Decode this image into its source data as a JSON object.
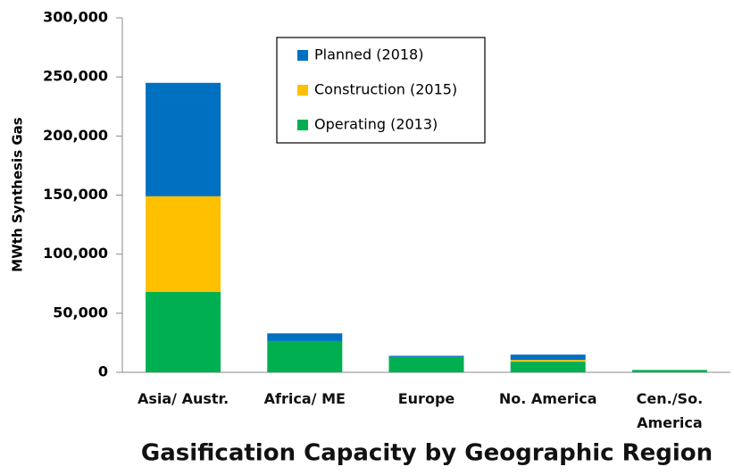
{
  "chart_data": {
    "type": "stacked_bar",
    "title": "Gasification Capacity by Geographic Region",
    "y_label": "MWth Synthesis Gas",
    "categories": [
      "Asia/ Austr.",
      "Africa/ ME",
      "Europe",
      "No. America",
      "Cen./So. America"
    ],
    "series": [
      {
        "name": "Operating (2013)",
        "color": "#00b050",
        "values": [
          68000,
          26500,
          13000,
          9000,
          2000
        ]
      },
      {
        "name": "Construction (2015)",
        "color": "#ffc000",
        "values": [
          81000,
          0,
          0,
          1500,
          0
        ]
      },
      {
        "name": "Planned (2018)",
        "color": "#0070c0",
        "values": [
          96000,
          6500,
          1000,
          4500,
          0
        ]
      }
    ],
    "ylim": [
      0,
      300000
    ],
    "yticks": [
      0,
      {
        "value": 50000,
        "label": "50,000"
      },
      {
        "value": 100000,
        "label": "100,000"
      },
      {
        "value": 150000,
        "label": "150,000"
      },
      {
        "value": 200000,
        "label": "200,000"
      },
      {
        "value": 250000,
        "label": "250,000"
      },
      {
        "value": 300000,
        "label": "300,000"
      }
    ],
    "legend": "top-center"
  }
}
